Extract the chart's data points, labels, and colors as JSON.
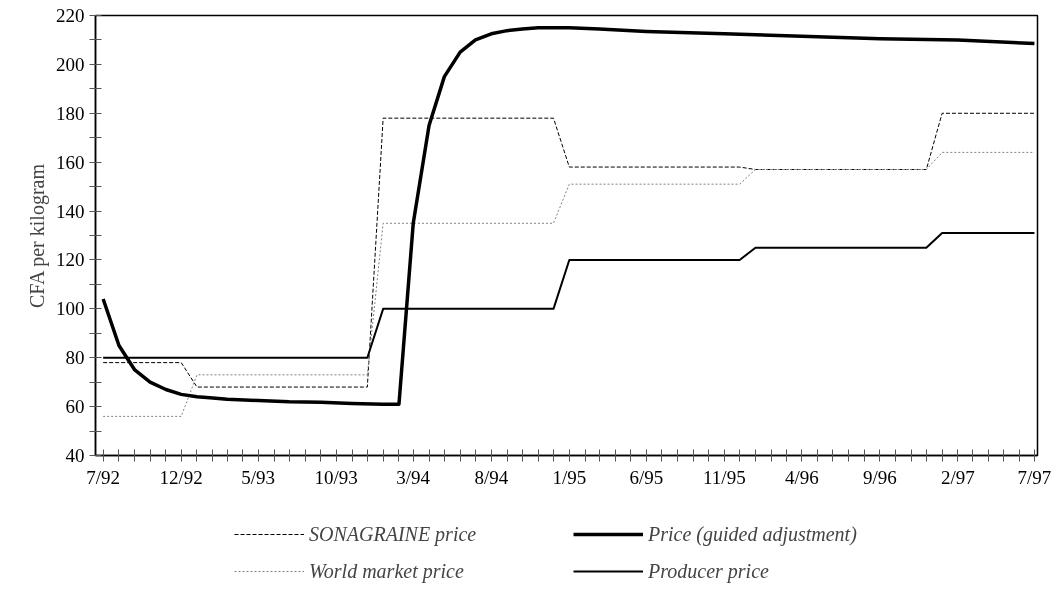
{
  "chart_data": {
    "type": "line",
    "ylabel": "CFA per kilogram",
    "xlim": [
      "1992-06-16",
      "1997-07-07"
    ],
    "ylim": [
      40,
      220
    ],
    "yticks": [
      40,
      {
        "value": 50,
        "label": null
      },
      60,
      {
        "value": 70,
        "label": null
      },
      80,
      {
        "value": 90,
        "label": null
      },
      100,
      {
        "value": 110,
        "label": null
      },
      120,
      {
        "value": 130,
        "label": null
      },
      140,
      {
        "value": 150,
        "label": null
      },
      160,
      {
        "value": 170,
        "label": null
      },
      180,
      {
        "value": 190,
        "label": null
      },
      200,
      {
        "value": 210,
        "label": null
      },
      220
    ],
    "xticks": [
      {
        "value": "1992-07",
        "label": "7/92"
      },
      {
        "value": "1992-08",
        "label": null
      },
      {
        "value": "1992-09",
        "label": null
      },
      {
        "value": "1992-10",
        "label": null
      },
      {
        "value": "1992-11",
        "label": null
      },
      {
        "value": "1992-12",
        "label": "12/92"
      },
      {
        "value": "1993-01",
        "label": null
      },
      {
        "value": "1993-02",
        "label": null
      },
      {
        "value": "1993-03",
        "label": null
      },
      {
        "value": "1993-04",
        "label": null
      },
      {
        "value": "1993-05",
        "label": "5/93"
      },
      {
        "value": "1993-06",
        "label": null
      },
      {
        "value": "1993-07",
        "label": null
      },
      {
        "value": "1993-08",
        "label": null
      },
      {
        "value": "1993-09",
        "label": null
      },
      {
        "value": "1993-10",
        "label": "10/93"
      },
      {
        "value": "1993-11",
        "label": null
      },
      {
        "value": "1993-12",
        "label": null
      },
      {
        "value": "1994-01",
        "label": null
      },
      {
        "value": "1994-02",
        "label": null
      },
      {
        "value": "1994-03",
        "label": "3/94"
      },
      {
        "value": "1994-04",
        "label": null
      },
      {
        "value": "1994-05",
        "label": null
      },
      {
        "value": "1994-06",
        "label": null
      },
      {
        "value": "1994-07",
        "label": null
      },
      {
        "value": "1994-08",
        "label": "8/94"
      },
      {
        "value": "1994-09",
        "label": null
      },
      {
        "value": "1994-10",
        "label": null
      },
      {
        "value": "1994-11",
        "label": null
      },
      {
        "value": "1994-12",
        "label": null
      },
      {
        "value": "1995-01",
        "label": "1/95"
      },
      {
        "value": "1995-02",
        "label": null
      },
      {
        "value": "1995-03",
        "label": null
      },
      {
        "value": "1995-04",
        "label": null
      },
      {
        "value": "1995-05",
        "label": null
      },
      {
        "value": "1995-06",
        "label": "6/95"
      },
      {
        "value": "1995-07",
        "label": null
      },
      {
        "value": "1995-08",
        "label": null
      },
      {
        "value": "1995-09",
        "label": null
      },
      {
        "value": "1995-10",
        "label": null
      },
      {
        "value": "1995-11",
        "label": "11/95"
      },
      {
        "value": "1995-12",
        "label": null
      },
      {
        "value": "1996-01",
        "label": null
      },
      {
        "value": "1996-02",
        "label": null
      },
      {
        "value": "1996-03",
        "label": null
      },
      {
        "value": "1996-04",
        "label": "4/96"
      },
      {
        "value": "1996-05",
        "label": null
      },
      {
        "value": "1996-06",
        "label": null
      },
      {
        "value": "1996-07",
        "label": null
      },
      {
        "value": "1996-08",
        "label": null
      },
      {
        "value": "1996-09",
        "label": "9/96"
      },
      {
        "value": "1996-10",
        "label": null
      },
      {
        "value": "1996-11",
        "label": null
      },
      {
        "value": "1996-12",
        "label": null
      },
      {
        "value": "1997-01",
        "label": null
      },
      {
        "value": "1997-02",
        "label": "2/97"
      },
      {
        "value": "1997-03",
        "label": null
      },
      {
        "value": "1997-04",
        "label": null
      },
      {
        "value": "1997-05",
        "label": null
      },
      {
        "value": "1997-06",
        "label": null
      },
      {
        "value": "1997-07",
        "label": "7/97"
      }
    ],
    "grid": false,
    "legend": "bottom",
    "series": [
      {
        "name": "SONAGRAINE price",
        "color": "#000000",
        "line_style": "dashed",
        "x": [
          "1992-07",
          "1992-12",
          "1993-01",
          "1993-12",
          "1994-01",
          "1994-12",
          "1995-01",
          "1995-12",
          "1996-01",
          "1996-12",
          "1997-01",
          "1997-07"
        ],
        "values": [
          78,
          78,
          68,
          68,
          178,
          178,
          158,
          158,
          157,
          157,
          180,
          180
        ]
      },
      {
        "name": "World market price",
        "color": "#808080",
        "line_style": "dotted",
        "x": [
          "1992-07",
          "1992-12",
          "1993-01",
          "1993-12",
          "1994-01",
          "1994-12",
          "1995-01",
          "1995-12",
          "1996-01",
          "1996-12",
          "1997-01",
          "1997-07"
        ],
        "values": [
          56,
          56,
          73,
          73,
          135,
          135,
          151,
          151,
          157,
          157,
          164,
          164
        ]
      },
      {
        "name": "Price (guided adjustment)",
        "color": "#000000",
        "line_style": "solid",
        "x": [
          "1992-07",
          "1992-08",
          "1992-09",
          "1992-10",
          "1992-11",
          "1992-12",
          "1993-01",
          "1993-02",
          "1993-03",
          "1993-05",
          "1993-07",
          "1993-09",
          "1993-11",
          "1994-01",
          "1994-02",
          "1994-03",
          "1994-04",
          "1994-05",
          "1994-06",
          "1994-07",
          "1994-08",
          "1994-09",
          "1994-10",
          "1994-11",
          "1995-01",
          "1995-03",
          "1995-06",
          "1995-11",
          "1996-04",
          "1996-09",
          "1997-02",
          "1997-07"
        ],
        "values": [
          104,
          85,
          75,
          70,
          67,
          65,
          64,
          63.5,
          63,
          62.5,
          62,
          61.8,
          61.3,
          61,
          61,
          135,
          175,
          195,
          205,
          210,
          212.5,
          213.8,
          214.5,
          215,
          215,
          214.5,
          213.5,
          212.5,
          211.5,
          210.5,
          210,
          208.5
        ]
      },
      {
        "name": "Producer price",
        "color": "#000000",
        "line_style": "solid",
        "x": [
          "1992-07",
          "1993-12",
          "1994-01",
          "1994-12",
          "1995-01",
          "1995-12",
          "1996-01",
          "1996-12",
          "1997-01",
          "1997-07"
        ],
        "values": [
          80,
          80,
          100,
          100,
          120,
          120,
          125,
          125,
          131,
          131
        ]
      }
    ]
  }
}
